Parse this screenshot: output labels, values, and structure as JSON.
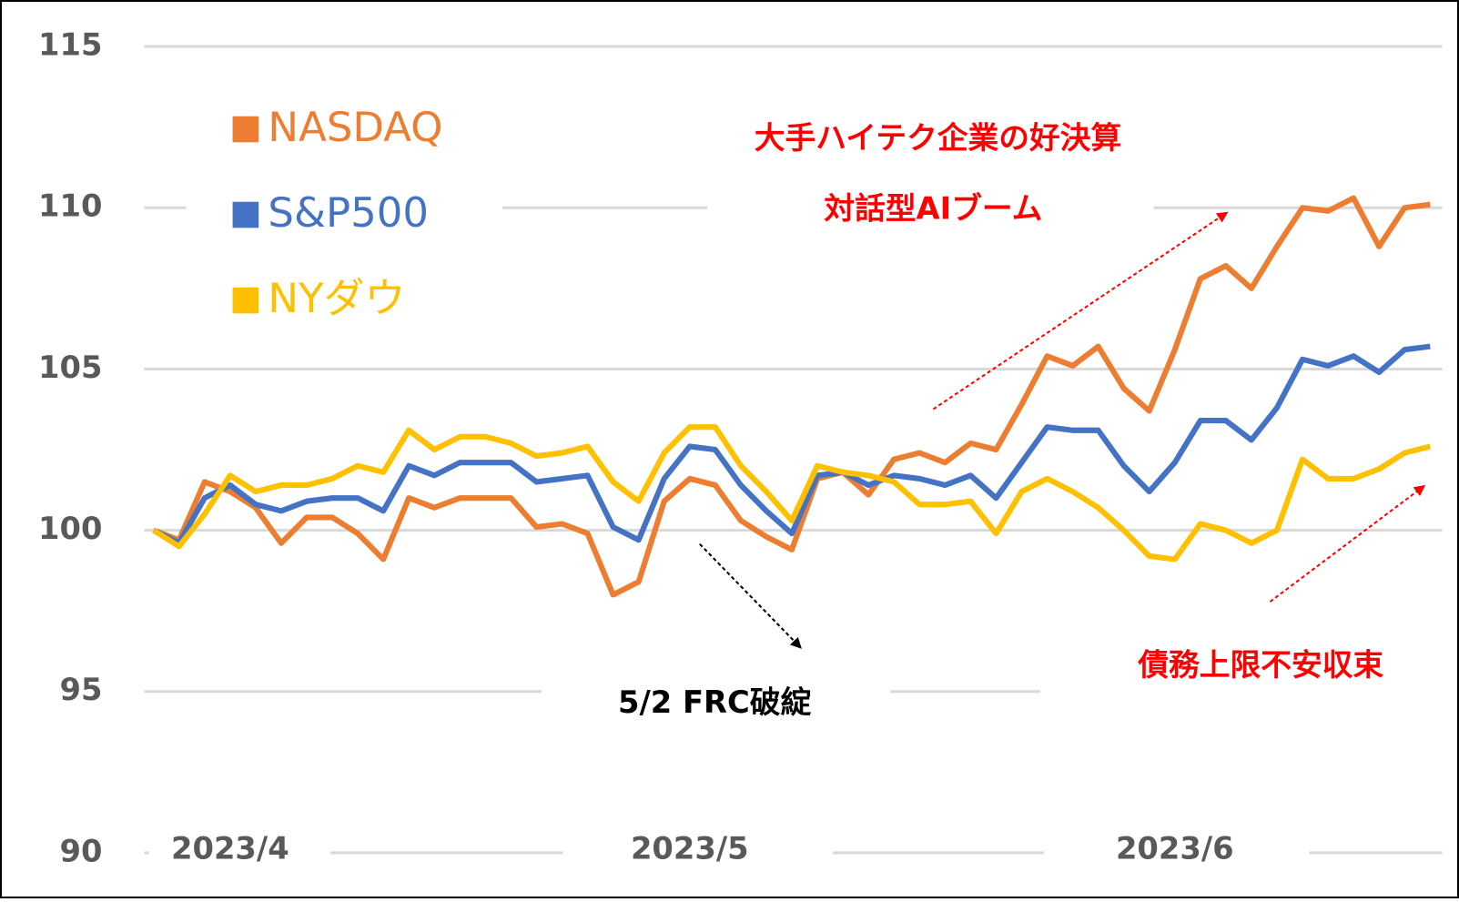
{
  "chart_data": {
    "type": "line",
    "categories": [
      null,
      null,
      null,
      "2023/4",
      null,
      null,
      null,
      null,
      null,
      null,
      null,
      null,
      null,
      null,
      null,
      null,
      null,
      null,
      null,
      null,
      null,
      "2023/5",
      null,
      null,
      null,
      null,
      null,
      null,
      null,
      null,
      null,
      null,
      null,
      null,
      null,
      null,
      null,
      null,
      null,
      null,
      "2023/6",
      null,
      null,
      null,
      null,
      null,
      null,
      null,
      null,
      null,
      null
    ],
    "series": [
      {
        "name": "NASDAQ",
        "color": "#ED7D31",
        "values": [
          100,
          99.7,
          101.5,
          101.2,
          100.7,
          99.6,
          100.4,
          100.4,
          99.9,
          99.1,
          101.0,
          100.7,
          101.0,
          101.0,
          101.0,
          100.1,
          100.2,
          99.9,
          98.0,
          98.4,
          100.9,
          101.6,
          101.4,
          100.3,
          99.8,
          99.4,
          101.6,
          101.8,
          101.1,
          102.2,
          102.4,
          102.1,
          102.7,
          102.5,
          103.9,
          105.4,
          105.1,
          105.7,
          104.4,
          103.7,
          105.6,
          107.8,
          108.2,
          107.5,
          108.8,
          110.0,
          109.9,
          110.3,
          108.8,
          110.0,
          110.1
        ]
      },
      {
        "name": "S&P500",
        "color": "#4472C4",
        "values": [
          100,
          99.6,
          101.0,
          101.4,
          100.8,
          100.6,
          100.9,
          101.0,
          101.0,
          100.6,
          102.0,
          101.7,
          102.1,
          102.1,
          102.1,
          101.5,
          101.6,
          101.7,
          100.1,
          99.7,
          101.6,
          102.6,
          102.5,
          101.4,
          100.6,
          99.9,
          101.7,
          101.8,
          101.4,
          101.7,
          101.6,
          101.4,
          101.7,
          101.0,
          102.1,
          103.2,
          103.1,
          103.1,
          102.0,
          101.2,
          102.1,
          103.4,
          103.4,
          102.8,
          103.8,
          105.3,
          105.1,
          105.4,
          104.9,
          105.6,
          105.7
        ]
      },
      {
        "name": "NYダウ",
        "color": "#FFC000",
        "values": [
          100,
          99.5,
          100.5,
          101.7,
          101.2,
          101.4,
          101.4,
          101.6,
          102.0,
          101.8,
          103.1,
          102.5,
          102.9,
          102.9,
          102.7,
          102.3,
          102.4,
          102.6,
          101.5,
          100.9,
          102.4,
          103.2,
          103.2,
          102.0,
          101.2,
          100.3,
          102.0,
          101.8,
          101.7,
          101.5,
          100.8,
          100.8,
          100.9,
          99.9,
          101.2,
          101.6,
          101.2,
          100.7,
          100.0,
          99.2,
          99.1,
          100.2,
          100.0,
          99.6,
          100.0,
          102.2,
          101.6,
          101.6,
          101.9,
          102.4,
          102.6
        ]
      }
    ],
    "ylim": [
      90,
      115
    ],
    "yticks": [
      90,
      95,
      100,
      105,
      110,
      115
    ],
    "grid": true,
    "annotations": [
      "大手ハイテク企業の好決算",
      "対話型AIブーム",
      "債務上限不安収束",
      "5/2 FRC破綻"
    ]
  }
}
